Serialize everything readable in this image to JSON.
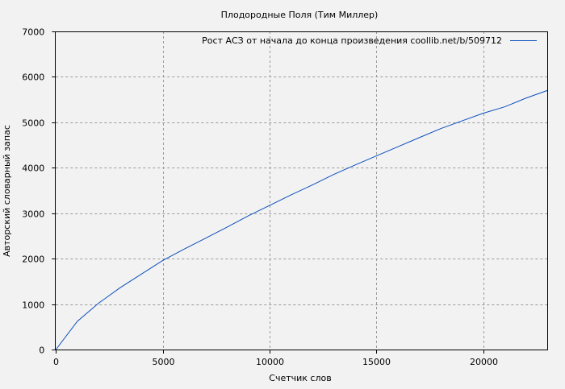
{
  "chart_data": {
    "type": "line",
    "title": "Плодородные Поля (Тим Миллер)",
    "xlabel": "Счетчик слов",
    "ylabel": "Авторский словарный запас",
    "xlim": [
      0,
      23000
    ],
    "ylim": [
      0,
      7000
    ],
    "xticks": [
      0,
      5000,
      10000,
      15000,
      20000
    ],
    "yticks": [
      0,
      1000,
      2000,
      3000,
      4000,
      5000,
      6000,
      7000
    ],
    "grid": true,
    "legend_position": "top-right",
    "series": [
      {
        "name": "Рост АСЗ от начала до конца произведения coollib.net/b/509712",
        "color": "#0b4fbd",
        "x": [
          0,
          1000,
          2000,
          3000,
          4000,
          5000,
          6000,
          7000,
          8000,
          9000,
          10000,
          11000,
          12000,
          13000,
          14000,
          15000,
          16000,
          17000,
          18000,
          19000,
          20000,
          21000,
          22000,
          23000
        ],
        "y": [
          0,
          620,
          1020,
          1360,
          1660,
          1960,
          2210,
          2450,
          2690,
          2940,
          3170,
          3400,
          3620,
          3850,
          4060,
          4260,
          4460,
          4660,
          4860,
          5030,
          5200,
          5340,
          5530,
          5700
        ]
      }
    ]
  }
}
